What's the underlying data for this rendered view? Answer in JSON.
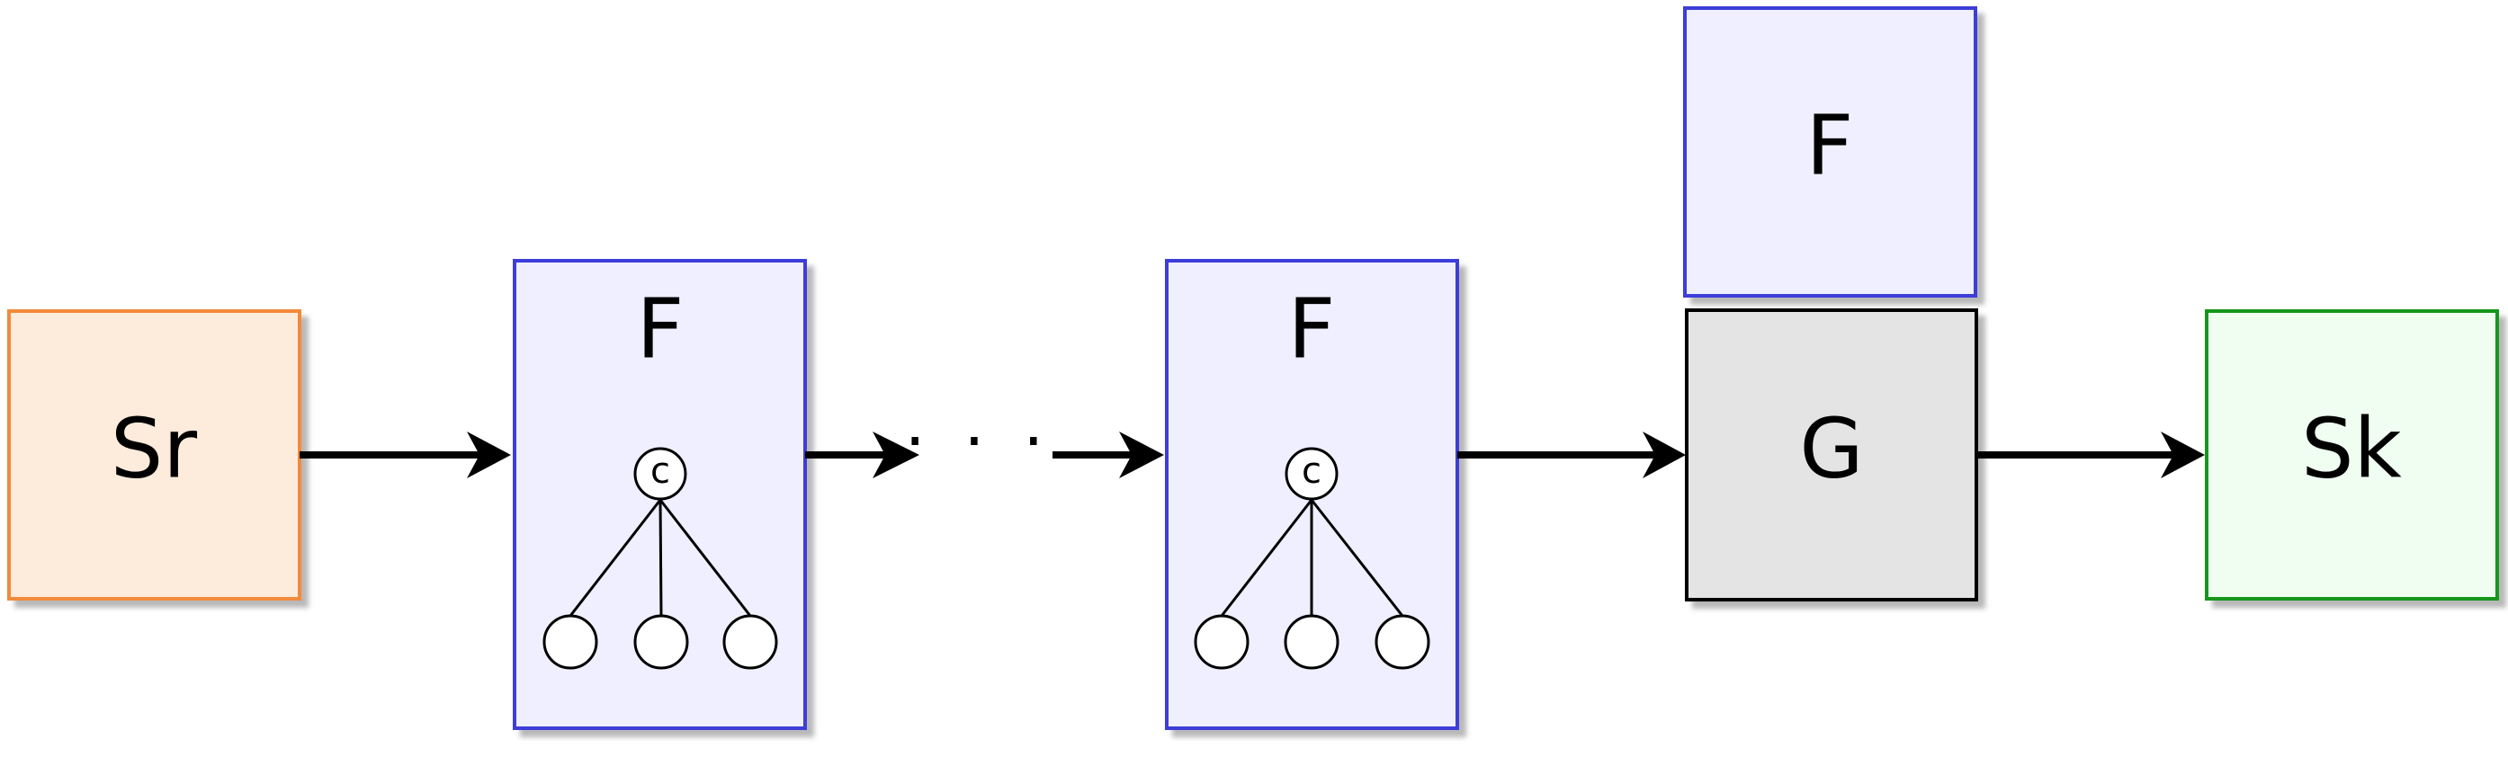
{
  "diagram": {
    "source": {
      "label": "Sr",
      "fill": "#fdebdc",
      "stroke": "#f28a3a"
    },
    "filter_1": {
      "label": "F",
      "fill": "#efefff",
      "stroke": "#3c3cd9",
      "root_label": "c"
    },
    "ellipsis": "· · ·",
    "filter_2": {
      "label": "F",
      "fill": "#efefff",
      "stroke": "#3c3cd9",
      "root_label": "c"
    },
    "filter_top": {
      "label": "F",
      "fill": "#efefff",
      "stroke": "#3c3cd9"
    },
    "group": {
      "label": "G",
      "fill": "#e4e4e4",
      "stroke": "#000000"
    },
    "sink": {
      "label": "Sk",
      "fill": "#effef0",
      "stroke": "#17961d"
    }
  }
}
